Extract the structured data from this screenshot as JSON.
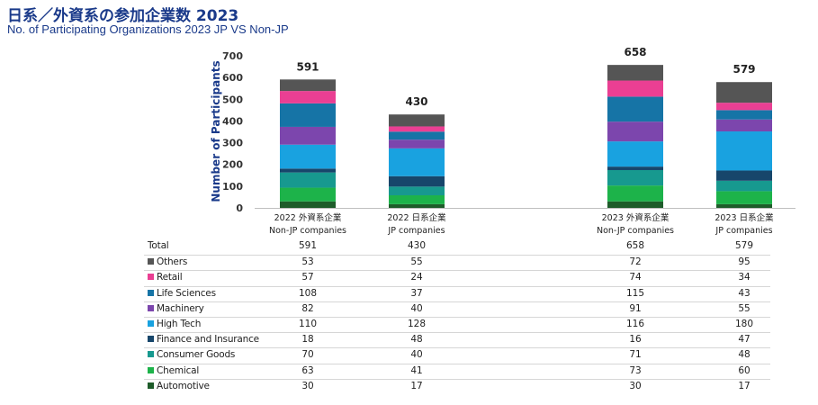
{
  "title": "日系／外資系の参加企業数 2023",
  "subtitle": "No. of Participating Organizations 2023 JP VS Non-JP",
  "chart_data": {
    "type": "bar",
    "stacked": true,
    "title": "日系／外資系の参加企業数 2023",
    "subtitle": "No. of Participating Organizations 2023 JP VS Non-JP",
    "ylabel": "Number of Participants",
    "xlabel": "",
    "ylim": [
      0,
      700
    ],
    "yticks": [
      0,
      100,
      200,
      300,
      400,
      500,
      600,
      700
    ],
    "categories": [
      {
        "line1": "2022 外資系企業",
        "line2": "Non-JP companies"
      },
      {
        "line1": "2022 日系企業",
        "line2": "JP companies"
      },
      {
        "line1": "2023 外資系企業",
        "line2": "Non-JP companies"
      },
      {
        "line1": "2023 日系企業",
        "line2": "JP companies"
      }
    ],
    "totals": [
      591,
      430,
      658,
      579
    ],
    "total_label": "Total",
    "series": [
      {
        "name": "Automotive",
        "color": "#1e5c2a",
        "values": [
          30,
          17,
          30,
          17
        ]
      },
      {
        "name": "Chemical",
        "color": "#1db34a",
        "values": [
          63,
          41,
          73,
          60
        ]
      },
      {
        "name": "Consumer Goods",
        "color": "#17998f",
        "values": [
          70,
          40,
          71,
          48
        ]
      },
      {
        "name": "Finance and Insurance",
        "color": "#17466b",
        "values": [
          18,
          48,
          16,
          47
        ]
      },
      {
        "name": "High Tech",
        "color": "#19a2e0",
        "values": [
          110,
          128,
          116,
          180
        ]
      },
      {
        "name": "Machinery",
        "color": "#7c46ad",
        "values": [
          82,
          40,
          91,
          55
        ]
      },
      {
        "name": "Life Sciences",
        "color": "#1674a6",
        "values": [
          108,
          37,
          115,
          43
        ]
      },
      {
        "name": "Retail",
        "color": "#ea3f93",
        "values": [
          57,
          24,
          74,
          34
        ]
      },
      {
        "name": "Others",
        "color": "#555555",
        "values": [
          53,
          55,
          72,
          95
        ]
      }
    ]
  }
}
